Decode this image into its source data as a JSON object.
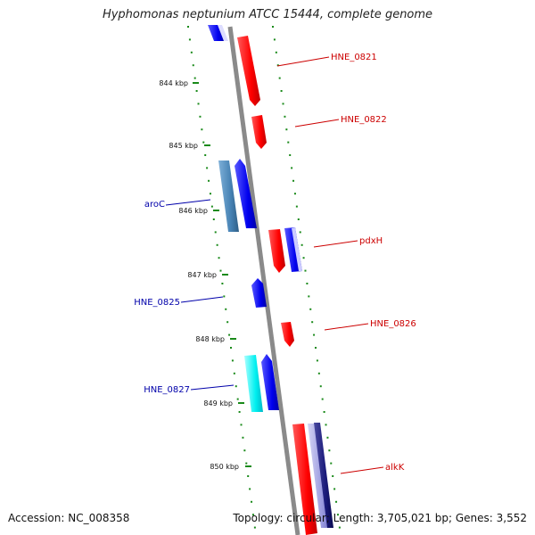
{
  "title": "Hyphomonas neptunium ATCC 15444, complete genome",
  "footer": {
    "accession": "Accession: NC_008358",
    "summary": "Topology: circular; Length: 3,705,021 bp; Genes: 3,552"
  },
  "ruler": [
    "844 kbp",
    "845 kbp",
    "846 kbp",
    "847 kbp",
    "848 kbp",
    "849 kbp",
    "850 kbp"
  ],
  "genes": [
    {
      "name": "HNE_0821",
      "strand": "+",
      "color": "#ff0000"
    },
    {
      "name": "HNE_0822",
      "strand": "+",
      "color": "#ff0000"
    },
    {
      "name": "aroC",
      "strand": "-",
      "color": "#4682b4"
    },
    {
      "name": "pdxH",
      "strand": "+",
      "color": "#ff0000"
    },
    {
      "name": "HNE_0825",
      "strand": "-",
      "color": "#0000ee"
    },
    {
      "name": "HNE_0826",
      "strand": "+",
      "color": "#ff0000"
    },
    {
      "name": "HNE_0827",
      "strand": "-",
      "color": "#00ffff"
    },
    {
      "name": "alkK",
      "strand": "+",
      "color": "#ff0000"
    }
  ],
  "colors": {
    "backbone": "#888888",
    "ticks": "#1a8a1a",
    "forward_label": "#cc0000",
    "reverse_label": "#0000aa"
  }
}
